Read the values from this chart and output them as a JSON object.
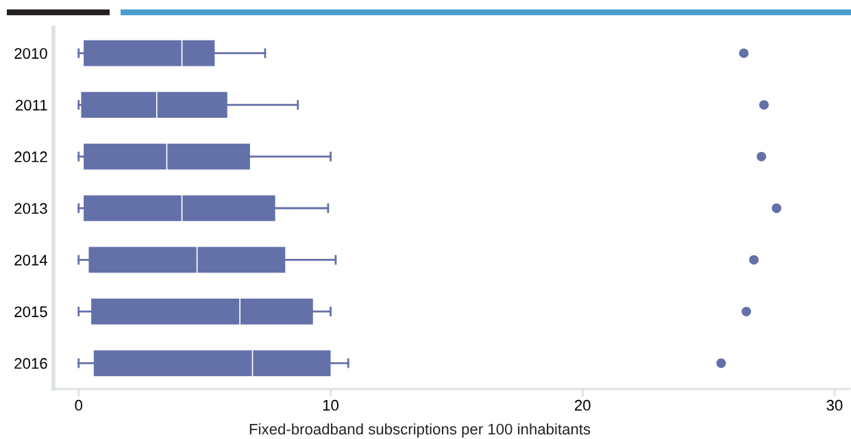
{
  "chart_data": {
    "type": "box",
    "orientation": "horizontal",
    "xlabel": "Fixed-broadband subscriptions per 100 inhabitants",
    "categories": [
      "2010",
      "2011",
      "2012",
      "2013",
      "2014",
      "2015",
      "2016"
    ],
    "color": "#6470a8",
    "boxes": [
      {
        "low": 0,
        "q1": 0.2,
        "median": 4.1,
        "q3": 5.4,
        "high": 7.4,
        "outliers": [
          26.4
        ]
      },
      {
        "low": 0,
        "q1": 0.1,
        "median": 3.1,
        "q3": 5.9,
        "high": 8.7,
        "outliers": [
          27.2
        ]
      },
      {
        "low": 0,
        "q1": 0.2,
        "median": 3.5,
        "q3": 6.8,
        "high": 10.0,
        "outliers": [
          27.1
        ]
      },
      {
        "low": 0,
        "q1": 0.2,
        "median": 4.1,
        "q3": 7.8,
        "high": 9.9,
        "outliers": [
          27.7
        ]
      },
      {
        "low": 0,
        "q1": 0.4,
        "median": 4.7,
        "q3": 8.2,
        "high": 10.2,
        "outliers": [
          26.8
        ]
      },
      {
        "low": 0,
        "q1": 0.5,
        "median": 6.4,
        "q3": 9.3,
        "high": 10.0,
        "outliers": [
          26.5
        ]
      },
      {
        "low": 0,
        "q1": 0.6,
        "median": 6.9,
        "q3": 10.0,
        "high": 10.7,
        "outliers": [
          25.5
        ]
      }
    ],
    "xlim": [
      -1,
      30.6
    ],
    "xticks": [
      0,
      10,
      20,
      30
    ],
    "grid": false
  }
}
